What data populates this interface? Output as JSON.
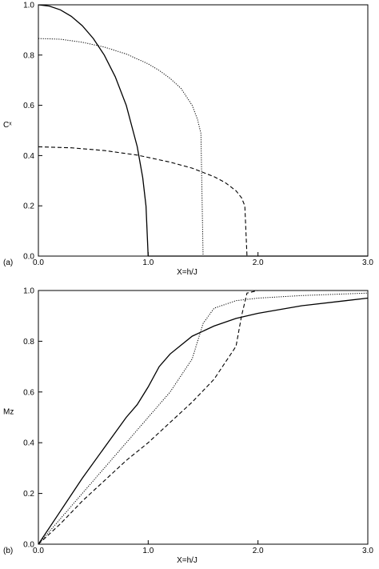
{
  "chart_data": [
    {
      "type": "line",
      "panel_label": "(a)",
      "xlabel": "X=h/J",
      "ylabel": "Cˣ",
      "xlim": [
        0,
        3
      ],
      "ylim": [
        0,
        1
      ],
      "x_ticks": [
        "0.0",
        "1.0",
        "2.0",
        "3.0"
      ],
      "y_ticks": [
        "0.0",
        "0.2",
        "0.4",
        "0.6",
        "0.8",
        "1.0"
      ],
      "grid": false,
      "legend": "none",
      "series": [
        {
          "style": "solid",
          "x": [
            0,
            0.1,
            0.2,
            0.3,
            0.4,
            0.5,
            0.6,
            0.7,
            0.8,
            0.9,
            0.95,
            0.98,
            1.0
          ],
          "y": [
            1.0,
            0.995,
            0.98,
            0.954,
            0.917,
            0.866,
            0.8,
            0.714,
            0.6,
            0.436,
            0.312,
            0.199,
            0.0
          ]
        },
        {
          "style": "dotted",
          "x": [
            0,
            0.2,
            0.4,
            0.6,
            0.8,
            1.0,
            1.1,
            1.2,
            1.3,
            1.4,
            1.45,
            1.48,
            1.5
          ],
          "y": [
            0.866,
            0.863,
            0.851,
            0.832,
            0.804,
            0.765,
            0.739,
            0.707,
            0.667,
            0.6,
            0.543,
            0.488,
            0.0
          ]
        },
        {
          "style": "dashed",
          "x": [
            0,
            0.3,
            0.6,
            0.9,
            1.2,
            1.4,
            1.6,
            1.7,
            1.8,
            1.85,
            1.88,
            1.9
          ],
          "y": [
            0.435,
            0.431,
            0.42,
            0.402,
            0.374,
            0.35,
            0.316,
            0.293,
            0.26,
            0.232,
            0.2,
            0.0
          ]
        },
        {
          "style": "solid",
          "x": [
            1.0,
            3.0
          ],
          "y": [
            0.0,
            0.0
          ]
        }
      ]
    },
    {
      "type": "line",
      "panel_label": "(b)",
      "xlabel": "X=h/J",
      "ylabel": "Mz",
      "xlim": [
        0,
        3
      ],
      "ylim": [
        0,
        1
      ],
      "x_ticks": [
        "0.0",
        "1.0",
        "2.0",
        "3.0"
      ],
      "y_ticks": [
        "0.0",
        "0.2",
        "0.4",
        "0.6",
        "0.8",
        "1.0"
      ],
      "grid": false,
      "legend": "none",
      "series": [
        {
          "style": "solid",
          "x": [
            0,
            0.2,
            0.4,
            0.6,
            0.8,
            0.9,
            1.0,
            1.1,
            1.2,
            1.4,
            1.6,
            1.8,
            2.0,
            2.4,
            2.8,
            3.0
          ],
          "y": [
            0,
            0.13,
            0.26,
            0.38,
            0.5,
            0.55,
            0.62,
            0.7,
            0.75,
            0.82,
            0.86,
            0.89,
            0.91,
            0.94,
            0.96,
            0.97
          ]
        },
        {
          "style": "dotted",
          "x": [
            0,
            0.2,
            0.4,
            0.6,
            0.8,
            1.0,
            1.2,
            1.4,
            1.5,
            1.6,
            1.8,
            2.0,
            2.4,
            3.0
          ],
          "y": [
            0,
            0.1,
            0.2,
            0.3,
            0.4,
            0.5,
            0.6,
            0.73,
            0.87,
            0.93,
            0.96,
            0.97,
            0.98,
            0.99
          ]
        },
        {
          "style": "dashed",
          "x": [
            0,
            0.2,
            0.4,
            0.6,
            0.8,
            1.0,
            1.2,
            1.4,
            1.6,
            1.8,
            1.85,
            1.9,
            2.0,
            2.5,
            3.0
          ],
          "y": [
            0,
            0.08,
            0.17,
            0.25,
            0.33,
            0.4,
            0.48,
            0.56,
            0.65,
            0.78,
            0.9,
            0.99,
            1.0,
            1.0,
            1.0
          ]
        }
      ]
    }
  ]
}
